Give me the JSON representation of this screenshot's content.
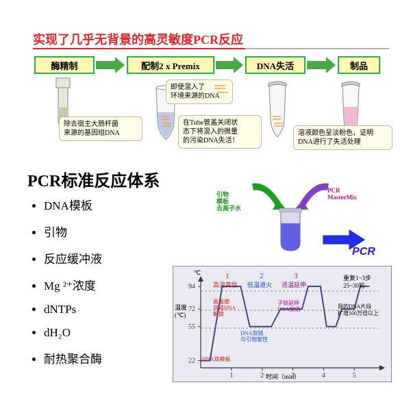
{
  "colors": {
    "title": "#e3242b",
    "underline_red": "#e3242b",
    "underline_gray": "#b0b0b0",
    "step_border": "#22b24c",
    "step_bg": "#fff7b2",
    "arrow": "#4aa84a",
    "callout_bg": "#fdfde8",
    "callout_border": "#b8b080",
    "dna_orange": "#ff8c1a",
    "liquid_blue": "#9fb0e0",
    "liquid_pink": "#f4b8d4",
    "chart_bg": "#eaeaf2",
    "chart_line": "#444488",
    "chart_dash": "#666",
    "phase1": "#cc2020",
    "phase2": "#1050d0",
    "phase3": "#9a1090",
    "pcr_blue": "#2020d0",
    "primer_green": "#20a020",
    "primer_purple": "#8040c0",
    "mixer_liquid": "#6060e0"
  },
  "title": "实现了几乎无背景的高灵敏度PCR反应",
  "title_fontsize": 18,
  "steps": [
    {
      "label": "酶精制"
    },
    {
      "label": "配制2 x Premix"
    },
    {
      "label": "DNA失活"
    },
    {
      "label": "制品"
    }
  ],
  "callouts": {
    "c1": "除去宿主大肠杆菌\n来源的基因组DNA",
    "c2a": "即使混入了\n环境来源的DNA",
    "c2b": "在Tube管盖关闭状\n态下将混入的微量\n的污染DNA失活！",
    "c3": "溶液颜色呈淡粉色，证明\nDNA进行了失活处理"
  },
  "section_title": "PCR标准反应体系",
  "section_fontsize": 22,
  "bullets": [
    "DNA模板",
    "引物",
    "反应缓冲液",
    "Mg ²⁺浓度",
    "dNTPs",
    "dH₂O",
    "耐热聚合酶"
  ],
  "bullet_fontsize": 17,
  "mixer": {
    "left_label": "引物\n模板\n去离子水",
    "left_color": "#20a020",
    "right_label": "PCR\nMasterMix",
    "right_color": "#c01080",
    "pcr_text": "PCR"
  },
  "chart": {
    "x_axis": "时间（min）",
    "y_axis": "温度\n(℃)",
    "y_unit": "℃",
    "y_ticks": [
      22,
      55,
      72,
      94
    ],
    "x_ticks": [
      1,
      2,
      3,
      4,
      5
    ],
    "ylim": [
      15,
      100
    ],
    "xlim": [
      0,
      5.8
    ],
    "phases": [
      {
        "num": "1",
        "label": "高温变性",
        "color": "#cc2020"
      },
      {
        "num": "2",
        "label": "低温退火",
        "color": "#1050d0"
      },
      {
        "num": "3",
        "label": "适温延伸",
        "color": "#9a1090"
      }
    ],
    "repeat": "重复1~3步\n25~30轮",
    "bottom_note": "DNA双链\n与引物复性",
    "ext_note": "子链延伸\nDNA加倍",
    "start_note": "DNA双模板",
    "denature_note": "高温使\n双链DNA\n解旋",
    "result_note": "目的DNA片段\n扩增100万倍以上",
    "line_points": [
      [
        0,
        22
      ],
      [
        0.3,
        22
      ],
      [
        0.7,
        94
      ],
      [
        1.3,
        94
      ],
      [
        1.6,
        55
      ],
      [
        2.3,
        55
      ],
      [
        2.6,
        72
      ],
      [
        3.3,
        72
      ],
      [
        3.5,
        94
      ],
      [
        3.9,
        94
      ],
      [
        4.1,
        55
      ],
      [
        4.4,
        55
      ],
      [
        4.6,
        72
      ],
      [
        5.0,
        72
      ],
      [
        5.2,
        94
      ],
      [
        5.5,
        94
      ]
    ]
  }
}
